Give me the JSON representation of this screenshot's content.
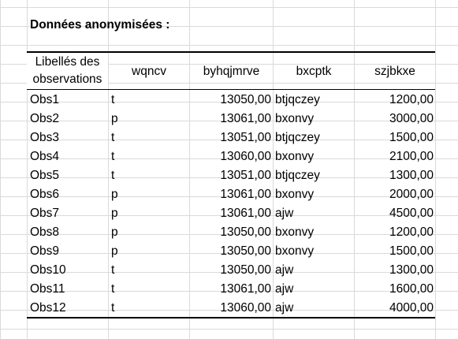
{
  "sheet": {
    "title": "Données anonymisées :",
    "headers": {
      "label_line1": "Libellés des",
      "label_line2": "observations",
      "col1": "wqncv",
      "col2": "byhqjmrve",
      "col3": "bxcptk",
      "col4": "szjbkxe"
    },
    "rows": [
      {
        "label": "Obs1",
        "c1": "t",
        "c2": "13050,00",
        "c3": "btjqczey",
        "c4": "1200,00"
      },
      {
        "label": "Obs2",
        "c1": "p",
        "c2": "13061,00",
        "c3": "bxonvy",
        "c4": "3000,00"
      },
      {
        "label": "Obs3",
        "c1": "t",
        "c2": "13051,00",
        "c3": "btjqczey",
        "c4": "1500,00"
      },
      {
        "label": "Obs4",
        "c1": "t",
        "c2": "13060,00",
        "c3": "bxonvy",
        "c4": "2100,00"
      },
      {
        "label": "Obs5",
        "c1": "t",
        "c2": "13051,00",
        "c3": "btjqczey",
        "c4": "1300,00"
      },
      {
        "label": "Obs6",
        "c1": "p",
        "c2": "13061,00",
        "c3": "bxonvy",
        "c4": "2000,00"
      },
      {
        "label": "Obs7",
        "c1": "p",
        "c2": "13061,00",
        "c3": "ajw",
        "c4": "4500,00"
      },
      {
        "label": "Obs8",
        "c1": "p",
        "c2": "13050,00",
        "c3": "bxonvy",
        "c4": "1200,00"
      },
      {
        "label": "Obs9",
        "c1": "p",
        "c2": "13050,00",
        "c3": "bxonvy",
        "c4": "1500,00"
      },
      {
        "label": "Obs10",
        "c1": "t",
        "c2": "13050,00",
        "c3": "ajw",
        "c4": "1300,00"
      },
      {
        "label": "Obs11",
        "c1": "t",
        "c2": "13061,00",
        "c3": "ajw",
        "c4": "1600,00"
      },
      {
        "label": "Obs12",
        "c1": "t",
        "c2": "13060,00",
        "c3": "ajw",
        "c4": "4000,00"
      }
    ]
  }
}
